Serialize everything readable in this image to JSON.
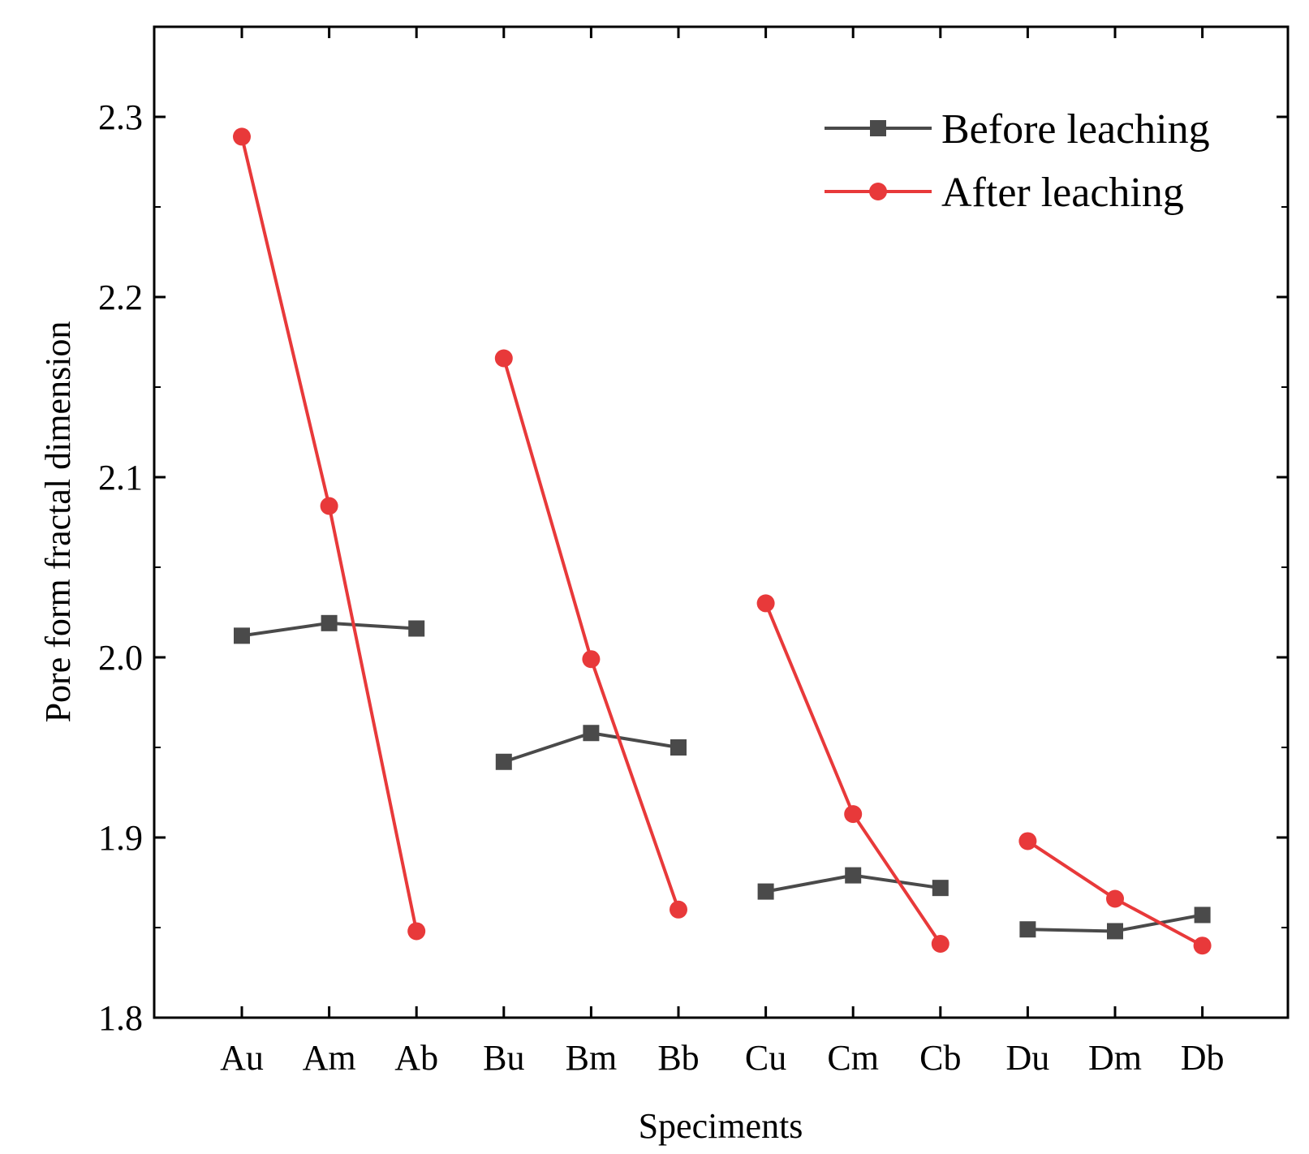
{
  "chart_data": {
    "type": "line",
    "title": "",
    "xlabel": "Speciments",
    "ylabel": "Pore form fractal dimension",
    "categories": [
      "Au",
      "Am",
      "Ab",
      "Bu",
      "Bm",
      "Bb",
      "Cu",
      "Cm",
      "Cb",
      "Du",
      "Dm",
      "Db"
    ],
    "ylim": [
      1.8,
      2.35
    ],
    "yticks": [
      "1.8",
      "1.9",
      "2.0",
      "2.1",
      "2.2",
      "2.3"
    ],
    "legend_position": "top-right",
    "series": [
      {
        "name": "Before leaching",
        "color": "#4a4a4a",
        "marker": "square",
        "groups": [
          [
            2.012,
            2.019,
            2.016
          ],
          [
            1.942,
            1.958,
            1.95
          ],
          [
            1.87,
            1.879,
            1.872
          ],
          [
            1.849,
            1.848,
            1.857
          ]
        ]
      },
      {
        "name": "After leaching",
        "color": "#e8393a",
        "marker": "circle",
        "groups": [
          [
            2.289,
            2.084,
            1.848
          ],
          [
            2.166,
            1.999,
            1.86
          ],
          [
            2.03,
            1.913,
            1.841
          ],
          [
            1.898,
            1.866,
            1.84
          ]
        ]
      }
    ]
  }
}
